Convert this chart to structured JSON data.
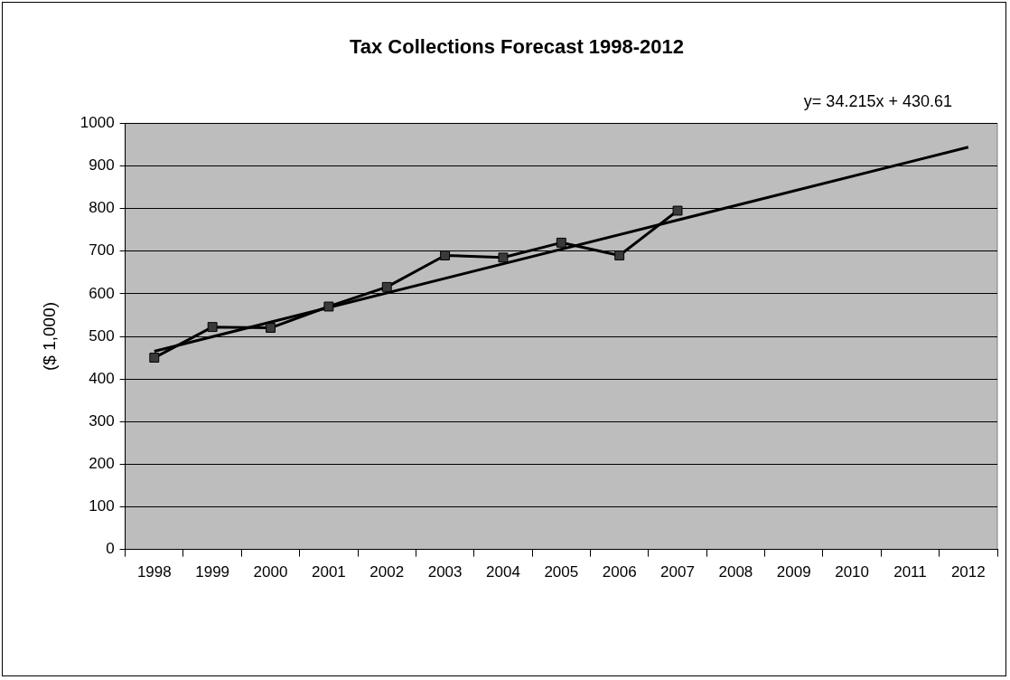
{
  "chart_data": {
    "type": "line",
    "title": "Tax Collections Forecast 1998-2012",
    "ylabel": "($ 1,000)",
    "categories": [
      "1998",
      "1999",
      "2000",
      "2001",
      "2002",
      "2003",
      "2004",
      "2005",
      "2006",
      "2007",
      "2008",
      "2009",
      "2010",
      "2011",
      "2012"
    ],
    "series": [
      {
        "color": "#000000",
        "marker": "square",
        "values": [
          450,
          522,
          520,
          570,
          616,
          690,
          685,
          720,
          690,
          795,
          null,
          null,
          null,
          null,
          null
        ]
      },
      {
        "color": "#000000",
        "marker": "none",
        "values": [
          465,
          null,
          null,
          null,
          null,
          null,
          null,
          null,
          null,
          null,
          null,
          null,
          null,
          null,
          944
        ]
      }
    ],
    "annotations": [
      "y= 34.215x + 430.61"
    ],
    "ylim": [
      0,
      1000
    ],
    "yticks": [
      0,
      100,
      200,
      300,
      400,
      500,
      600,
      700,
      800,
      900,
      1000
    ],
    "grid": "y",
    "legend": false
  }
}
